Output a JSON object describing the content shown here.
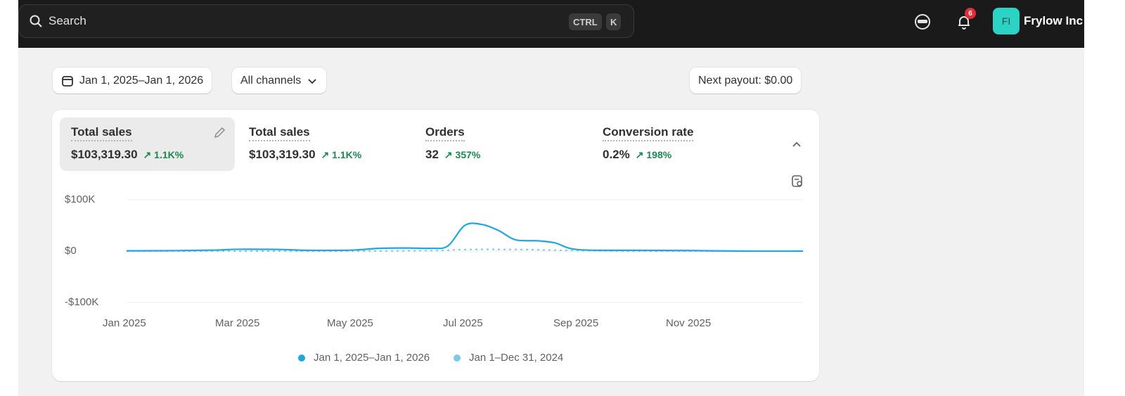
{
  "topbar": {
    "search_placeholder": "Search",
    "shortcut_ctrl": "CTRL",
    "shortcut_k": "K",
    "notification_count": "6",
    "avatar_initials": "FI",
    "store_name": "Frylow Inc"
  },
  "filters": {
    "date_range": "Jan 1, 2025–Jan 1, 2026",
    "channels": "All channels",
    "payout": "Next payout: $0.00"
  },
  "metrics": [
    {
      "label": "Total sales",
      "value": "$103,319.30",
      "delta": "1.1K%"
    },
    {
      "label": "Total sales",
      "value": "$103,319.30",
      "delta": "1.1K%"
    },
    {
      "label": "Orders",
      "value": "32",
      "delta": "357%"
    },
    {
      "label": "Conversion rate",
      "value": "0.2%",
      "delta": "198%"
    }
  ],
  "chart_data": {
    "type": "line",
    "ylim": [
      -100,
      100
    ],
    "yticks": [
      "$100K",
      "$0",
      "-$100K"
    ],
    "xticks": [
      "Jan 2025",
      "Mar 2025",
      "May 2025",
      "Jul 2025",
      "Sep 2025",
      "Nov 2025"
    ],
    "x_unit": "months since Jan 2025",
    "y_unit": "$K",
    "series": [
      {
        "name": "Jan 1, 2025–Jan 1, 2026",
        "color": "#1ea7e4",
        "dashed": false,
        "x": [
          0,
          1,
          1.6,
          2,
          2.8,
          3.2,
          4,
          4.5,
          5,
          5.4,
          5.7,
          6,
          6.3,
          6.6,
          6.9,
          7.3,
          7.6,
          8,
          9,
          10,
          11,
          12
        ],
        "y": [
          0.5,
          1,
          2,
          3.5,
          3,
          1.5,
          2,
          5.5,
          6,
          5.5,
          10,
          50,
          52,
          40,
          22,
          20,
          16,
          3,
          1.5,
          1,
          0,
          0
        ]
      },
      {
        "name": "Jan 1–Dec 31, 2024",
        "color": "#7cc8ea",
        "dashed": true,
        "x": [
          0,
          2,
          4,
          5.5,
          6,
          7,
          7.5,
          8,
          9,
          12
        ],
        "y": [
          0,
          0,
          0,
          1,
          3,
          3,
          2,
          1,
          0,
          0
        ]
      }
    ],
    "legend": {
      "position": "bottom-center"
    }
  }
}
